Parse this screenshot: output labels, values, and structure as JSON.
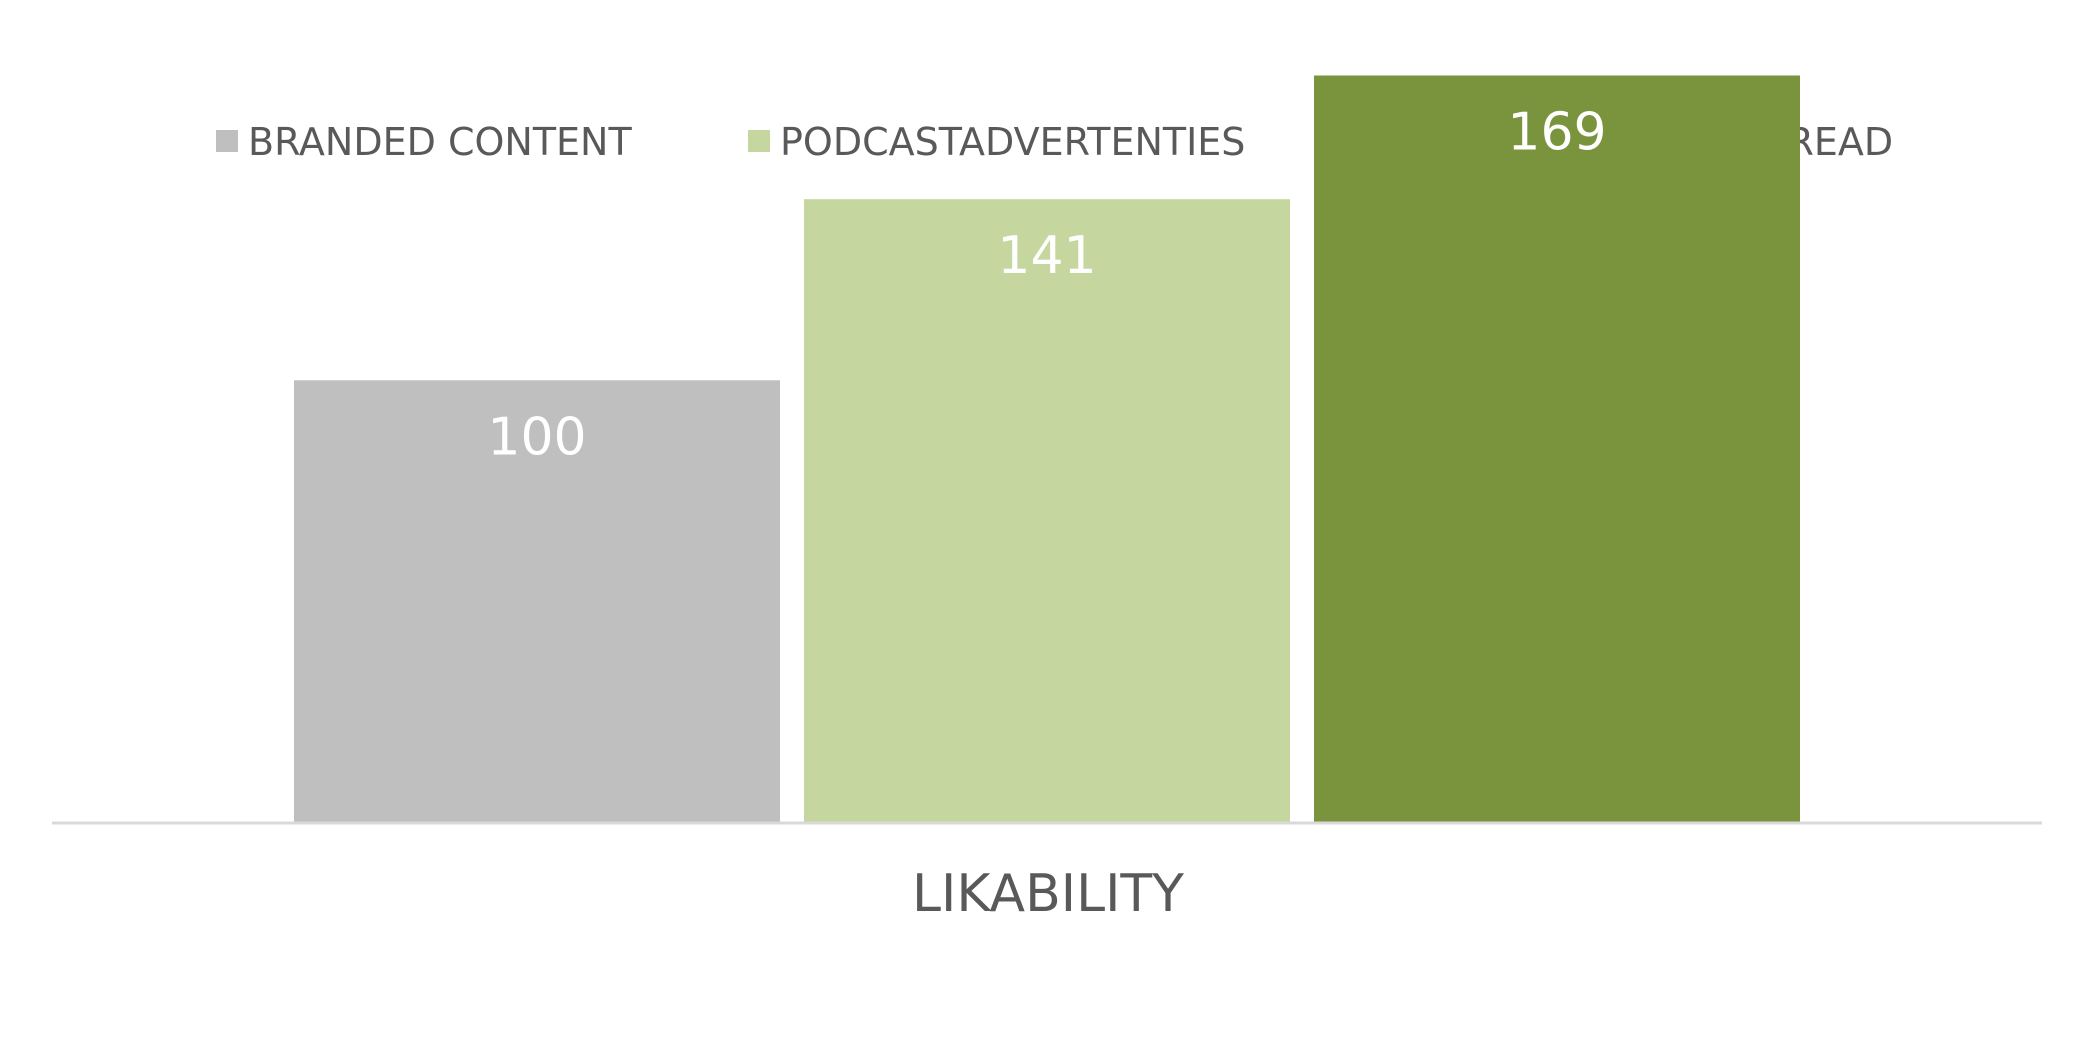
{
  "chart_data": {
    "type": "bar",
    "categories": [
      "LIKABILITY"
    ],
    "series": [
      {
        "name": "BRANDED CONTENT",
        "values": [
          100
        ],
        "color": "#bfbfbf"
      },
      {
        "name": "PODCASTADVERTENTIES",
        "values": [
          141
        ],
        "color": "#c5d79f"
      },
      {
        "name": "TONNY MEDIA HOST READ",
        "values": [
          169
        ],
        "color": "#79943c"
      }
    ],
    "ylim": [
      0,
      175
    ],
    "grid": false,
    "legend": "top",
    "axis_color": "#d9d9d9"
  }
}
